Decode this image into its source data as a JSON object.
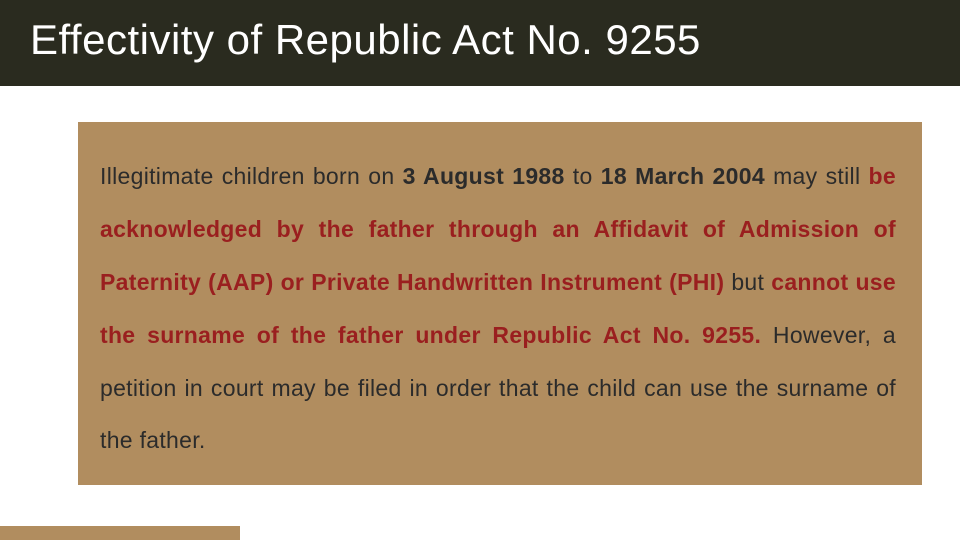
{
  "header": {
    "title": "Effectivity of Republic Act No. 9255",
    "background_color": "#2a2b1f",
    "text_color": "#ffffff",
    "title_fontsize": 42
  },
  "content": {
    "background_color": "#b18d5f",
    "text_color": "#2b2b2b",
    "highlight_color": "#9a1f1f",
    "body_fontsize": 23,
    "line_height": 2.3,
    "segments": {
      "s1": "Illegitimate children born on ",
      "s2": "3 August 1988",
      "s3": " to ",
      "s4": "18 March 2004",
      "s5": " may still ",
      "s6": "be acknowledged by the father through an Affidavit of Admission of Paternity (AAP) or Private Handwritten Instrument (PHI)",
      "s7": " but ",
      "s8": "cannot use the surname of the father under Republic Act No. 9255.",
      "s9": "  However, a petition in court may be filed in order that the child can use the surname of the father."
    }
  },
  "decor": {
    "bottom_bar_color": "#b18d5f",
    "bottom_bar_width": 240,
    "bottom_bar_height": 14
  }
}
